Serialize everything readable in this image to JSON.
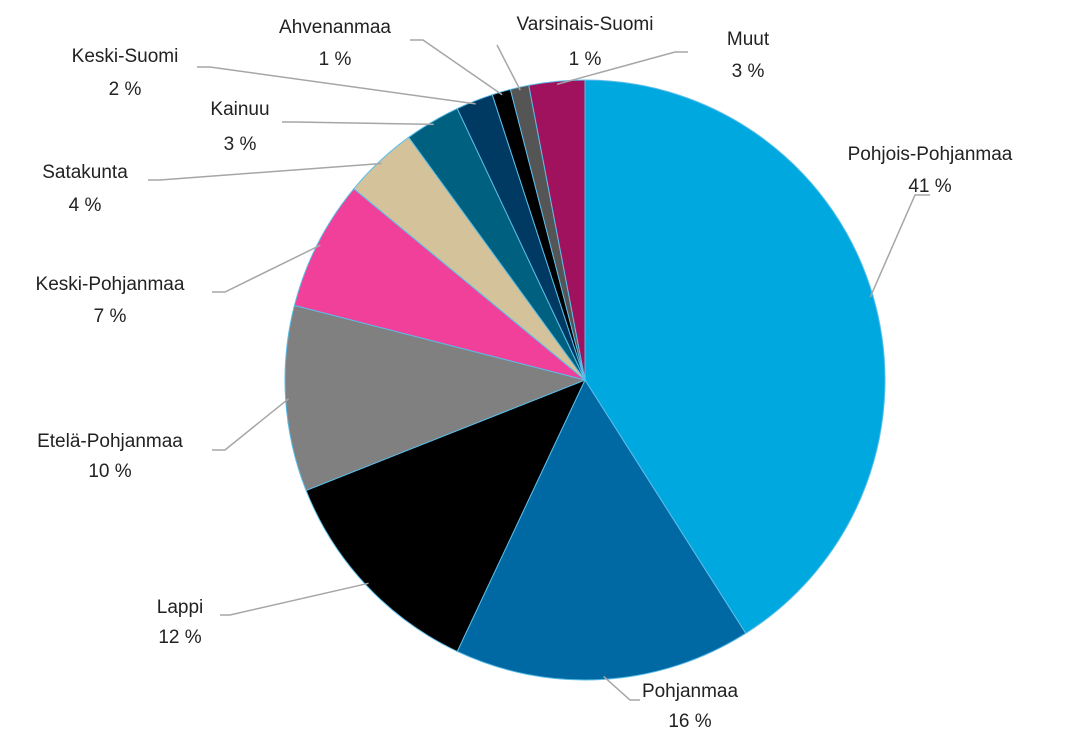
{
  "chart_data": {
    "type": "pie",
    "categories": [
      "Pohjois-Pohjanmaa",
      "Pohjanmaa",
      "Lappi",
      "Etelä-Pohjanmaa",
      "Keski-Pohjanmaa",
      "Satakunta",
      "Kainuu",
      "Keski-Suomi",
      "Ahvenanmaa",
      "Varsinais-Suomi",
      "Muut"
    ],
    "values": [
      41,
      16,
      12,
      10,
      7,
      4,
      3,
      2,
      1,
      1,
      3
    ],
    "value_labels": [
      "41 %",
      "16 %",
      "12 %",
      "10 %",
      "7 %",
      "4 %",
      "3 %",
      "2 %",
      "1 %",
      "1 %",
      "3 %"
    ],
    "colors": [
      "#00a8e0",
      "#0068a3",
      "#000000",
      "#808080",
      "#f0409a",
      "#d4c39a",
      "#00607f",
      "#003a63",
      "#000000",
      "#555555",
      "#a0125e"
    ]
  }
}
